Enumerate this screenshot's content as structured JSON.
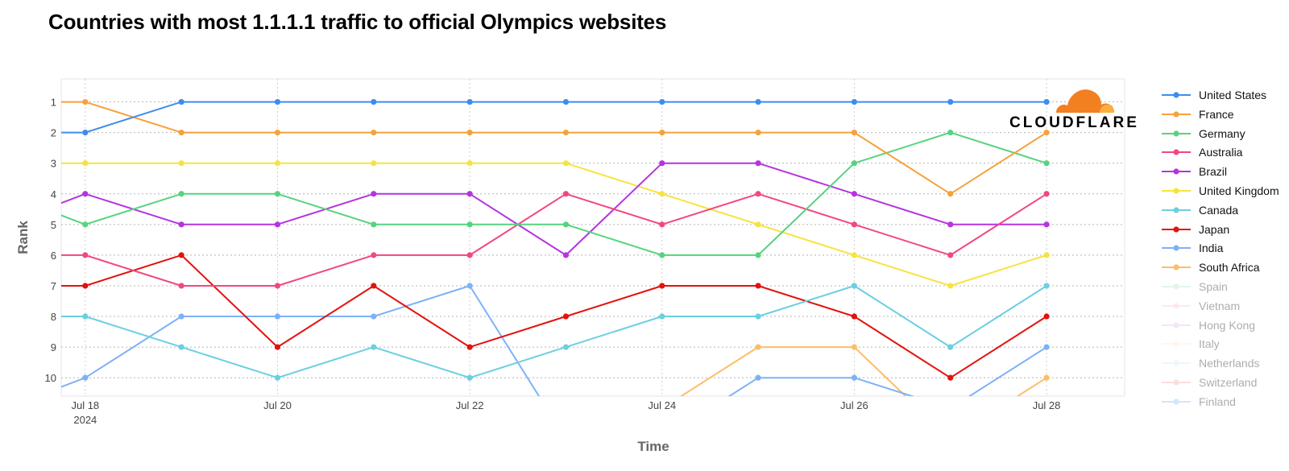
{
  "title": "Countries with most 1.1.1.1 traffic to official Olympics websites",
  "logo": {
    "name": "cloudflare-logo",
    "text": "CLOUDFLARE",
    "color_primary": "#f38020",
    "color_secondary": "#faae40"
  },
  "chart_data": {
    "type": "line",
    "xlabel": "Time",
    "ylabel": "Rank",
    "y_reversed": true,
    "ylim": [
      0.25,
      10.6
    ],
    "xlim": [
      "2024-07-17T18:00",
      "2024-07-28T19:30"
    ],
    "x": [
      "2024-07-18",
      "2024-07-19",
      "2024-07-20",
      "2024-07-21",
      "2024-07-22",
      "2024-07-23",
      "2024-07-24",
      "2024-07-25",
      "2024-07-26",
      "2024-07-27",
      "2024-07-28"
    ],
    "xticks": [
      "2024-07-18",
      "2024-07-20",
      "2024-07-22",
      "2024-07-24",
      "2024-07-26",
      "2024-07-28"
    ],
    "xtick_labels": [
      [
        "Jul 18",
        "2024"
      ],
      [
        "Jul 20"
      ],
      [
        "Jul 22"
      ],
      [
        "Jul 24"
      ],
      [
        "Jul 26"
      ],
      [
        "Jul 28"
      ]
    ],
    "yticks": [
      1,
      2,
      3,
      4,
      5,
      6,
      7,
      8,
      9,
      10
    ],
    "ytick_labels": [
      "1",
      "2",
      "3",
      "4",
      "5",
      "6",
      "7",
      "8",
      "9",
      "10"
    ],
    "grid": true,
    "legend_position": "right",
    "series": [
      {
        "name": "United States",
        "color": "#3d8df0",
        "start": 2,
        "values": [
          2,
          1,
          1,
          1,
          1,
          1,
          1,
          1,
          1,
          1,
          1
        ]
      },
      {
        "name": "France",
        "color": "#f7a13b",
        "start": 1,
        "values": [
          1,
          2,
          2,
          2,
          2,
          2,
          2,
          2,
          2,
          4,
          2
        ]
      },
      {
        "name": "Germany",
        "color": "#56d37e",
        "start": 4.7,
        "values": [
          5,
          4,
          4,
          5,
          5,
          5,
          6,
          6,
          3,
          2,
          3
        ]
      },
      {
        "name": "Australia",
        "color": "#f1487f",
        "start": 6,
        "values": [
          6,
          7,
          7,
          6,
          6,
          4,
          5,
          4,
          5,
          6,
          4
        ]
      },
      {
        "name": "Brazil",
        "color": "#b534e0",
        "start": 4.3,
        "values": [
          4,
          5,
          5,
          4,
          4,
          6,
          3,
          3,
          4,
          5,
          5
        ]
      },
      {
        "name": "United Kingdom",
        "color": "#f8e33e",
        "start": 3,
        "values": [
          3,
          3,
          3,
          3,
          3,
          3,
          4,
          5,
          6,
          7,
          6
        ]
      },
      {
        "name": "Canada",
        "color": "#6bcfe1",
        "start": 8,
        "values": [
          8,
          9,
          10,
          9,
          10,
          9,
          8,
          8,
          7,
          9,
          7
        ]
      },
      {
        "name": "Japan",
        "color": "#e3120f",
        "start": 7,
        "values": [
          7,
          6,
          9,
          7,
          9,
          8,
          7,
          7,
          8,
          10,
          8
        ]
      },
      {
        "name": "India",
        "color": "#7db2f7",
        "start": 10.3,
        "values": [
          10,
          8,
          8,
          8,
          7,
          12,
          12,
          10,
          10,
          11,
          9
        ]
      },
      {
        "name": "South Africa",
        "color": "#fbbe67",
        "start": null,
        "values": [
          null,
          null,
          null,
          null,
          null,
          null,
          11,
          9,
          9,
          12,
          10
        ]
      },
      {
        "name": "Spain",
        "color": "#a7e8c0",
        "faded": true
      },
      {
        "name": "Vietnam",
        "color": "#f7c1dc",
        "faded": true
      },
      {
        "name": "Hong Kong",
        "color": "#e4b3f1",
        "faded": true
      },
      {
        "name": "Italy",
        "color": "#fde9c4",
        "faded": true
      },
      {
        "name": "Netherlands",
        "color": "#cdeaf6",
        "faded": true
      },
      {
        "name": "Switzerland",
        "color": "#f5a19b",
        "faded": true
      },
      {
        "name": "Finland",
        "color": "#86b6f3",
        "faded": true
      }
    ]
  }
}
